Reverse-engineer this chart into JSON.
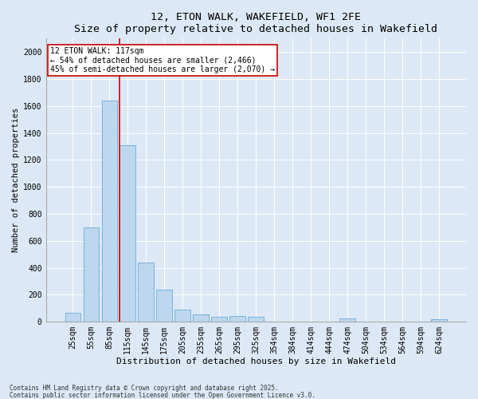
{
  "title": "12, ETON WALK, WAKEFIELD, WF1 2FE",
  "subtitle": "Size of property relative to detached houses in Wakefield",
  "xlabel": "Distribution of detached houses by size in Wakefield",
  "ylabel": "Number of detached properties",
  "categories": [
    "25sqm",
    "55sqm",
    "85sqm",
    "115sqm",
    "145sqm",
    "175sqm",
    "205sqm",
    "235sqm",
    "265sqm",
    "295sqm",
    "325sqm",
    "354sqm",
    "384sqm",
    "414sqm",
    "444sqm",
    "474sqm",
    "504sqm",
    "534sqm",
    "564sqm",
    "594sqm",
    "624sqm"
  ],
  "values": [
    65,
    700,
    1640,
    1310,
    440,
    240,
    90,
    55,
    35,
    40,
    35,
    0,
    0,
    0,
    0,
    25,
    0,
    0,
    0,
    0,
    20
  ],
  "bar_color": "#bdd7ee",
  "bar_edge_color": "#6aabdb",
  "marker_line_index": 3,
  "marker_label": "12 ETON WALK: 117sqm",
  "annotation_line1": "← 54% of detached houses are smaller (2,466)",
  "annotation_line2": "45% of semi-detached houses are larger (2,070) →",
  "marker_color": "#cc0000",
  "ylim": [
    0,
    2100
  ],
  "yticks": [
    0,
    200,
    400,
    600,
    800,
    1000,
    1200,
    1400,
    1600,
    1800,
    2000
  ],
  "background_color": "#dce8f5",
  "plot_background": "#dce8f5",
  "footnote1": "Contains HM Land Registry data © Crown copyright and database right 2025.",
  "footnote2": "Contains public sector information licensed under the Open Government Licence v3.0.",
  "title_fontsize": 9.5,
  "subtitle_fontsize": 8.5,
  "xlabel_fontsize": 8,
  "ylabel_fontsize": 7.5,
  "tick_fontsize": 7,
  "annotation_fontsize": 7,
  "footnote_fontsize": 5.5
}
